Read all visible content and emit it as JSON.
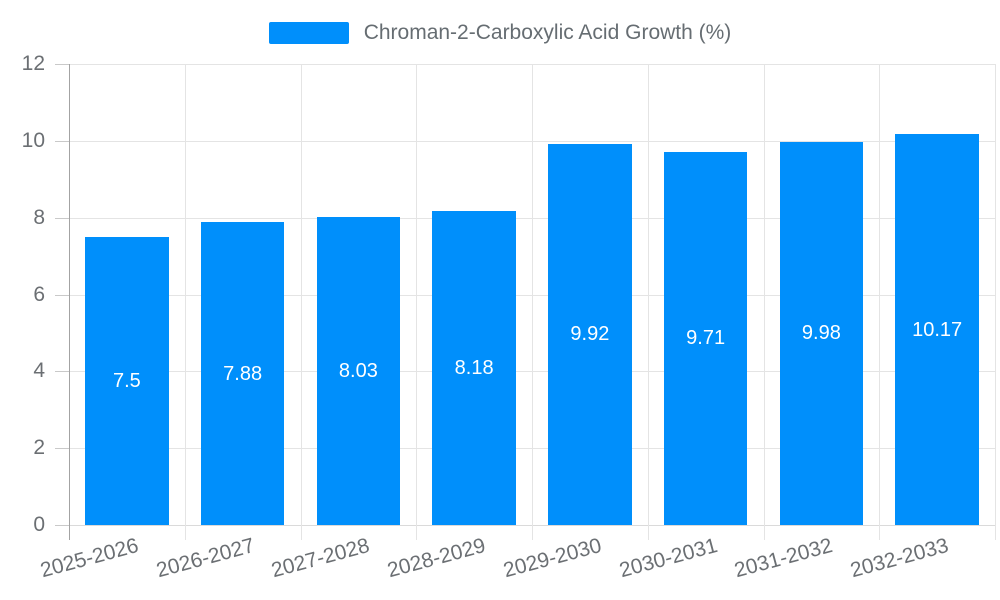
{
  "chart_data": {
    "type": "bar",
    "title": "Chroman-2-Carboxylic Acid Growth (%)",
    "categories": [
      "2025-2026",
      "2026-2027",
      "2027-2028",
      "2028-2029",
      "2029-2030",
      "2030-2031",
      "2031-2032",
      "2032-2033"
    ],
    "values": [
      7.5,
      7.88,
      8.03,
      8.18,
      9.92,
      9.71,
      9.98,
      10.17
    ],
    "value_labels": [
      "7.5",
      "7.88",
      "8.03",
      "8.18",
      "9.92",
      "9.71",
      "9.98",
      "10.17"
    ],
    "xlabel": "",
    "ylabel": "",
    "ylim": [
      0,
      12
    ],
    "yticks": [
      0,
      2,
      4,
      6,
      8,
      10,
      12
    ],
    "grid": true,
    "legend_position": "top",
    "bar_color": "#008FFB",
    "bar_label_color": "#FFFFFF"
  },
  "colors": {
    "axis_label": "#6B6F73",
    "gridline": "#E4E4E4",
    "zero_line": "#DADADA",
    "axis_line": "#A3A3A3",
    "tick": "#C9C9C9",
    "background": "#FFFFFF"
  }
}
